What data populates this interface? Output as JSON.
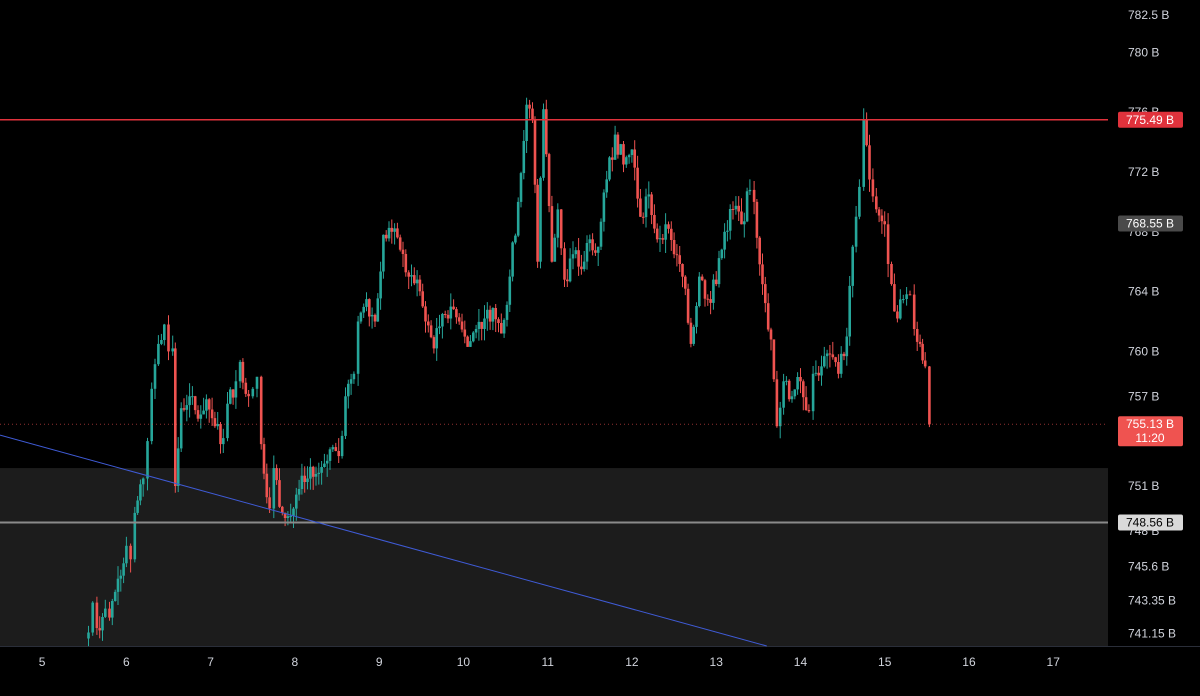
{
  "colors": {
    "background": "#000000",
    "zone": "#1c1c1c",
    "up": "#26a69a",
    "down": "#ef5350",
    "resistance": "#e0323c",
    "support": "#8a8a8a",
    "trend": "#3f5bd6",
    "axis_text": "#d1d4dc"
  },
  "chart_data": {
    "type": "candlestick",
    "title": "",
    "xlabel": "",
    "ylabel": "",
    "y_unit": "B",
    "xlim": [
      4.5,
      17.65
    ],
    "ylim": [
      740.3,
      783.5
    ],
    "grid": false,
    "x_ticks": [
      "5",
      "6",
      "7",
      "8",
      "9",
      "10",
      "11",
      "12",
      "13",
      "14",
      "15",
      "16",
      "17"
    ],
    "y_ticks": [
      {
        "value": 782.5,
        "label": "782.5 B"
      },
      {
        "value": 780,
        "label": "780 B"
      },
      {
        "value": 776,
        "label": "776 B"
      },
      {
        "value": 772,
        "label": "772 B"
      },
      {
        "value": 768,
        "label": "768 B"
      },
      {
        "value": 764,
        "label": "764 B"
      },
      {
        "value": 760,
        "label": "760 B"
      },
      {
        "value": 757,
        "label": "757 B"
      },
      {
        "value": 751,
        "label": "751 B"
      },
      {
        "value": 748,
        "label": "748 B"
      },
      {
        "value": 745.6,
        "label": "745.6 B"
      },
      {
        "value": 743.35,
        "label": "743.35 B"
      },
      {
        "value": 741.15,
        "label": "741.15 B"
      }
    ],
    "horizontal_lines": [
      {
        "name": "resistance",
        "value": 775.49,
        "label": "775.49 B"
      },
      {
        "name": "support",
        "value": 748.56,
        "label": "748.56 B"
      }
    ],
    "price_badges": [
      {
        "value": 768.55,
        "label": "768.55 B"
      }
    ],
    "current_price": {
      "value": 755.13,
      "label": "755.13 B",
      "timer": "11:20"
    },
    "zone": {
      "from": 740.3,
      "to": 752.2
    },
    "trendline": {
      "x1": 4.5,
      "y1": 754.4,
      "x2": 13.6,
      "y2": 740.3
    },
    "path_start": 740.8,
    "path_points": [
      [
        5.55,
        741.2
      ],
      [
        5.6,
        743.2
      ],
      [
        5.65,
        741.5
      ],
      [
        5.75,
        742.8
      ],
      [
        5.8,
        742.2
      ],
      [
        5.9,
        744.8
      ],
      [
        6.0,
        747.0
      ],
      [
        6.05,
        746.1
      ],
      [
        6.1,
        749.2
      ],
      [
        6.2,
        751.5
      ],
      [
        6.25,
        754.0
      ],
      [
        6.3,
        757.5
      ],
      [
        6.38,
        760.5
      ],
      [
        6.45,
        761.8
      ],
      [
        6.5,
        760.0
      ],
      [
        6.55,
        760.2
      ],
      [
        6.58,
        751.0
      ],
      [
        6.65,
        756.2
      ],
      [
        6.75,
        757.0
      ],
      [
        6.85,
        755.5
      ],
      [
        6.95,
        756.8
      ],
      [
        7.05,
        755.0
      ],
      [
        7.15,
        754.2
      ],
      [
        7.2,
        756.5
      ],
      [
        7.3,
        758.0
      ],
      [
        7.35,
        759.3
      ],
      [
        7.45,
        757.0
      ],
      [
        7.5,
        757.5
      ],
      [
        7.55,
        758.3
      ],
      [
        7.6,
        753.8
      ],
      [
        7.7,
        749.5
      ],
      [
        7.75,
        752.2
      ],
      [
        7.85,
        749.2
      ],
      [
        7.95,
        749.0
      ],
      [
        8.05,
        750.8
      ],
      [
        8.15,
        751.5
      ],
      [
        8.25,
        751.8
      ],
      [
        8.35,
        752.5
      ],
      [
        8.45,
        753.6
      ],
      [
        8.52,
        753.0
      ],
      [
        8.6,
        757.0
      ],
      [
        8.7,
        758.5
      ],
      [
        8.75,
        762.0
      ],
      [
        8.85,
        763.5
      ],
      [
        8.95,
        762.0
      ],
      [
        9.05,
        767.8
      ],
      [
        9.15,
        768.0
      ],
      [
        9.25,
        766.8
      ],
      [
        9.35,
        765.0
      ],
      [
        9.45,
        764.8
      ],
      [
        9.55,
        762.0
      ],
      [
        9.65,
        760.2
      ],
      [
        9.75,
        762.5
      ],
      [
        9.85,
        763.0
      ],
      [
        9.95,
        762.0
      ],
      [
        10.05,
        760.3
      ],
      [
        10.15,
        761.5
      ],
      [
        10.25,
        762.2
      ],
      [
        10.35,
        762.9
      ],
      [
        10.45,
        761.2
      ],
      [
        10.55,
        765.0
      ],
      [
        10.65,
        770.0
      ],
      [
        10.75,
        776.5
      ],
      [
        10.82,
        775.5
      ],
      [
        10.88,
        766.0
      ],
      [
        10.95,
        776.2
      ],
      [
        11.05,
        766.0
      ],
      [
        11.12,
        769.5
      ],
      [
        11.2,
        764.8
      ],
      [
        11.3,
        766.5
      ],
      [
        11.4,
        765.5
      ],
      [
        11.5,
        767.5
      ],
      [
        11.6,
        767.0
      ],
      [
        11.7,
        771.5
      ],
      [
        11.8,
        774.5
      ],
      [
        11.9,
        772.5
      ],
      [
        12.0,
        773.5
      ],
      [
        12.1,
        769.0
      ],
      [
        12.2,
        770.5
      ],
      [
        12.3,
        767.5
      ],
      [
        12.4,
        768.5
      ],
      [
        12.5,
        766.5
      ],
      [
        12.6,
        765.0
      ],
      [
        12.7,
        760.5
      ],
      [
        12.8,
        765.0
      ],
      [
        12.9,
        763.5
      ],
      [
        13.0,
        764.5
      ],
      [
        13.1,
        768.0
      ],
      [
        13.2,
        769.5
      ],
      [
        13.3,
        768.5
      ],
      [
        13.4,
        770.8
      ],
      [
        13.45,
        770.0
      ],
      [
        13.55,
        764.5
      ],
      [
        13.65,
        760.8
      ],
      [
        13.72,
        755.0
      ],
      [
        13.8,
        758.0
      ],
      [
        13.9,
        757.0
      ],
      [
        14.0,
        758.0
      ],
      [
        14.1,
        756.0
      ],
      [
        14.15,
        758.5
      ],
      [
        14.25,
        759.0
      ],
      [
        14.35,
        759.8
      ],
      [
        14.45,
        758.5
      ],
      [
        14.55,
        761.0
      ],
      [
        14.62,
        767.0
      ],
      [
        14.7,
        771.0
      ],
      [
        14.75,
        775.5
      ],
      [
        14.82,
        771.5
      ],
      [
        14.9,
        769.5
      ],
      [
        15.0,
        768.5
      ],
      [
        15.08,
        764.5
      ],
      [
        15.15,
        762.2
      ],
      [
        15.22,
        763.5
      ],
      [
        15.3,
        763.8
      ],
      [
        15.35,
        761.5
      ],
      [
        15.42,
        760.5
      ],
      [
        15.48,
        759.0
      ],
      [
        15.53,
        755.13
      ]
    ]
  }
}
